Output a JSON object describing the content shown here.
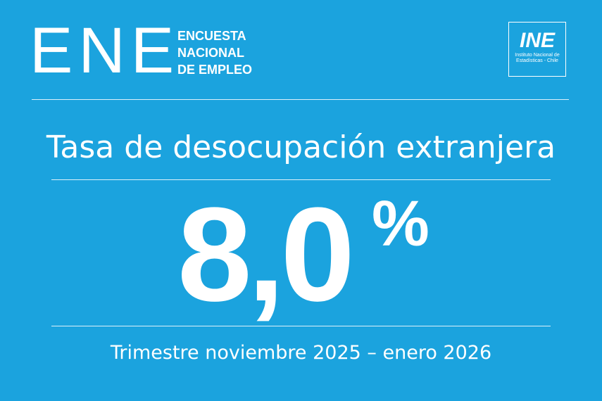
{
  "header": {
    "brand": "ENE",
    "subtitle": [
      "ENCUESTA",
      "NACIONAL",
      "DE EMPLEO"
    ]
  },
  "logo": {
    "mark": "INE",
    "caption": [
      "Instituto Nacional de",
      "Estadísticas - Chile"
    ]
  },
  "title": "Tasa de desocupación extranjera",
  "figure": {
    "value": "8,0",
    "unit": "%"
  },
  "period": "Trimestre noviembre 2025 – enero 2026"
}
